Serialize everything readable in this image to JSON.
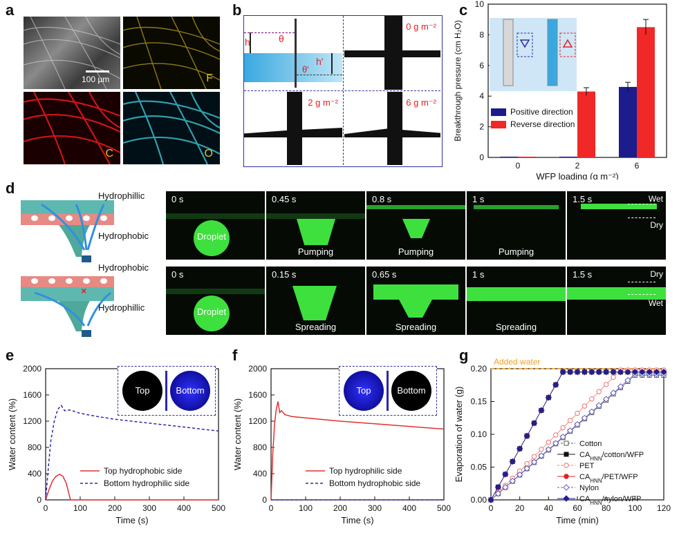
{
  "panels": {
    "a": {
      "label": "a",
      "scale_bar": "100 μm",
      "letters": [
        "F",
        "C",
        "O"
      ],
      "colors": {
        "sem": "#7a7a7a",
        "F": "#b8a020",
        "C": "#e01818",
        "O": "#3ab8c8"
      }
    },
    "b": {
      "label": "b",
      "schematic": {
        "h": "h",
        "theta": "θ",
        "h_prime": "h'",
        "theta_prime": "θ'"
      },
      "tiles": [
        "0 g m⁻²",
        "2 g m⁻²",
        "6 g m⁻²"
      ]
    },
    "c": {
      "label": "c"
    },
    "d": {
      "label": "d",
      "schematic_top": {
        "upper": "Hydrophillic",
        "lower": "Hydrophobic"
      },
      "schematic_bottom": {
        "upper": "Hydrophobic",
        "lower": "Hydrophillic"
      },
      "row1": {
        "frames": [
          {
            "time": "0 s",
            "center": "Droplet"
          },
          {
            "time": "0.45 s",
            "caption": "Pumping"
          },
          {
            "time": "0.8 s",
            "caption": "Pumping"
          },
          {
            "time": "1 s",
            "caption": "Pumping"
          },
          {
            "time": "1.5 s",
            "side_top": "Wet",
            "side_bottom": "Dry"
          }
        ]
      },
      "row2": {
        "frames": [
          {
            "time": "0 s",
            "center": "Droplet"
          },
          {
            "time": "0.15 s",
            "caption": "Spreading"
          },
          {
            "time": "0.65 s",
            "caption": "Spreading"
          },
          {
            "time": "1 s",
            "caption": "Spreading"
          },
          {
            "time": "1.5 s",
            "side_top": "Dry",
            "side_bottom": "Wet"
          }
        ]
      }
    },
    "e": {
      "label": "e",
      "inset": {
        "left": "Top",
        "right": "Bottom"
      }
    },
    "f": {
      "label": "f",
      "inset": {
        "left": "Top",
        "right": "Bottom"
      }
    },
    "g": {
      "label": "g"
    }
  },
  "chart_data": [
    {
      "id": "c",
      "type": "bar",
      "categories": [
        "0",
        "2",
        "6"
      ],
      "xlabel": "WFP loading (g m⁻²)",
      "ylabel": "Breakthrough pressure (cm H₂O)",
      "ylim": [
        0,
        10
      ],
      "yticks": [
        0,
        2,
        4,
        6,
        8,
        10
      ],
      "series": [
        {
          "name": "Positive direction",
          "color": "#1c1c8c",
          "values": [
            0.05,
            0.05,
            4.6
          ],
          "errors": [
            0,
            0,
            0.3
          ]
        },
        {
          "name": "Reverse direction",
          "color": "#f02828",
          "values": [
            0.05,
            4.3,
            8.5
          ],
          "errors": [
            0,
            0.25,
            0.5
          ]
        }
      ],
      "legend": "center-right"
    },
    {
      "id": "e",
      "type": "line",
      "xlabel": "Time (s)",
      "ylabel": "Water content (%)",
      "xlim": [
        0,
        500
      ],
      "ylim": [
        0,
        2000
      ],
      "xticks": [
        0,
        100,
        200,
        300,
        400,
        500
      ],
      "yticks": [
        0,
        400,
        800,
        1200,
        1600,
        2000
      ],
      "series": [
        {
          "name": "Top hydrophobic side",
          "color": "#e03030",
          "style": "solid",
          "x": [
            0,
            10,
            20,
            30,
            40,
            50,
            60,
            68,
            72,
            100,
            200,
            300,
            400,
            500
          ],
          "y": [
            0,
            160,
            290,
            360,
            390,
            360,
            250,
            80,
            0,
            0,
            0,
            0,
            0,
            0
          ]
        },
        {
          "name": "Bottom hydrophilic side",
          "color": "#2828a8",
          "style": "dashed",
          "x": [
            0,
            8,
            15,
            25,
            35,
            45,
            55,
            70,
            100,
            150,
            200,
            300,
            400,
            500
          ],
          "y": [
            0,
            500,
            900,
            1200,
            1380,
            1440,
            1360,
            1370,
            1320,
            1270,
            1230,
            1170,
            1110,
            1050
          ]
        }
      ],
      "legend": "bottom-right"
    },
    {
      "id": "f",
      "type": "line",
      "xlabel": "Time (s)",
      "ylabel": "Water content (%)",
      "xlim": [
        0,
        500
      ],
      "ylim": [
        0,
        2000
      ],
      "xticks": [
        0,
        100,
        200,
        300,
        400,
        500
      ],
      "yticks": [
        0,
        400,
        800,
        1200,
        1600,
        2000
      ],
      "series": [
        {
          "name": "Top hydrophilic side",
          "color": "#e03030",
          "style": "solid",
          "x": [
            0,
            5,
            10,
            15,
            20,
            25,
            30,
            40,
            60,
            100,
            200,
            300,
            400,
            500
          ],
          "y": [
            0,
            700,
            1150,
            1380,
            1500,
            1330,
            1360,
            1300,
            1270,
            1250,
            1200,
            1160,
            1120,
            1080
          ]
        },
        {
          "name": "Bottom hydrophobic side",
          "color": "#2828a8",
          "style": "dashed",
          "x": [
            0,
            100,
            200,
            300,
            400,
            500
          ],
          "y": [
            0,
            0,
            0,
            0,
            0,
            0
          ]
        }
      ],
      "legend": "bottom-right"
    },
    {
      "id": "g",
      "type": "scatter",
      "xlabel": "Time (min)",
      "ylabel": "Evaporation of water (g)",
      "xlim": [
        0,
        120
      ],
      "ylim": [
        0,
        0.2
      ],
      "xticks": [
        0,
        20,
        40,
        60,
        80,
        100,
        120
      ],
      "yticks": [
        0.0,
        0.05,
        0.1,
        0.15,
        0.2
      ],
      "reference_line": {
        "label": "Added water",
        "y": 0.2,
        "color": "#f0a020"
      },
      "series": [
        {
          "name": "Cotton",
          "color": "#555555",
          "marker": "square-open",
          "final": 0.19,
          "t_end": 100
        },
        {
          "name": "CA_HNN/cotton/WFP",
          "color": "#111111",
          "marker": "square-filled",
          "final": 0.195,
          "t_end": 50
        },
        {
          "name": "PET",
          "color": "#f07070",
          "marker": "circle-open",
          "final": 0.198,
          "t_end": 90
        },
        {
          "name": "CA_HNN/PET/WFP",
          "color": "#e02020",
          "marker": "circle-filled",
          "final": 0.195,
          "t_end": 50
        },
        {
          "name": "Nylon",
          "color": "#6060c0",
          "marker": "diamond-open",
          "final": 0.192,
          "t_end": 100
        },
        {
          "name": "CA_HNN/nylon/WFP",
          "color": "#202090",
          "marker": "diamond-filled",
          "final": 0.195,
          "t_end": 50
        }
      ],
      "legend": "bottom-right"
    }
  ]
}
